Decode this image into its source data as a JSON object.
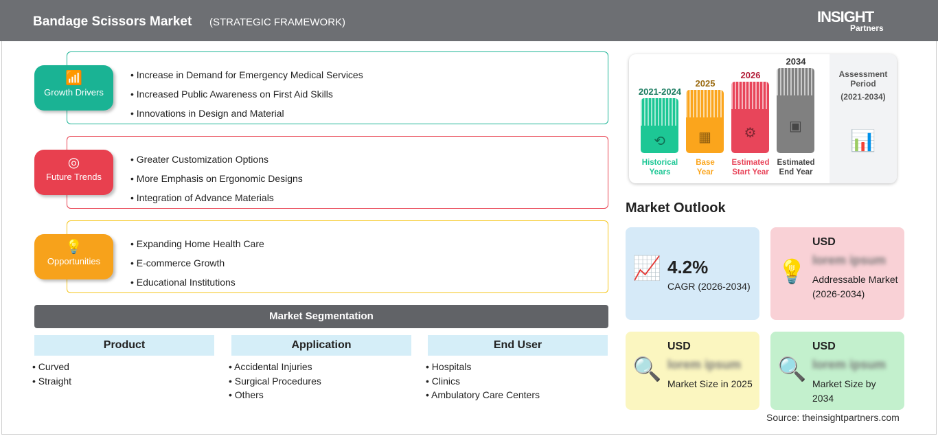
{
  "header": {
    "title": "Bandage Scissors Market",
    "subtitle": "(STRATEGIC FRAMEWORK)",
    "logo": "The INSIGHT Partners"
  },
  "sections": [
    {
      "label": "Growth Drivers",
      "color": "#1ab394",
      "icon": "bar-chart-icon",
      "items": [
        "Increase in Demand for Emergency Medical Services",
        "Increased Public Awareness on First Aid Skills",
        "Innovations in Design and Material"
      ]
    },
    {
      "label": "Future Trends",
      "color": "#e8404f",
      "icon": "target-icon",
      "items": [
        "Greater Customization Options",
        "More Emphasis on Ergonomic Designs",
        "Integration of Advance Materials"
      ]
    },
    {
      "label": "Opportunities",
      "color": "#f7a21b",
      "icon": "lightbulb-hand-icon",
      "items": [
        "Expanding Home Health Care",
        "E-commerce Growth",
        "Educational Institutions"
      ]
    }
  ],
  "segmentation": {
    "title": "Market Segmentation",
    "columns": [
      {
        "title": "Product",
        "items": [
          "Curved",
          "Straight"
        ]
      },
      {
        "title": "Application",
        "items": [
          "Accidental Injuries",
          "Surgical Procedures",
          "Others"
        ]
      },
      {
        "title": "End User",
        "items": [
          "Hospitals",
          "Clinics",
          "Ambulatory Care Centers"
        ]
      }
    ]
  },
  "timeline": {
    "bars": [
      {
        "year": "2021-2024",
        "label1": "Historical",
        "label2": "Years",
        "color": "#1dc795"
      },
      {
        "year": "2025",
        "label1": "Base",
        "label2": "Year",
        "color": "#fba51c"
      },
      {
        "year": "2026",
        "label1": "Estimated",
        "label2": "Start Year",
        "color": "#e8455a"
      },
      {
        "year": "2034",
        "label1": "Estimated",
        "label2": "End Year",
        "color": "#808080"
      }
    ],
    "assessment1": "Assessment",
    "assessment2": "Period",
    "assessment3": "(2021-2034)"
  },
  "outlook": {
    "title": "Market Outlook",
    "cagr_value": "4.2%",
    "cagr_label": "CAGR (2026-2034)",
    "cards": [
      {
        "currency": "USD",
        "value": "lorem ipsum",
        "desc": "Addressable Market (2026-2034)"
      },
      {
        "currency": "USD",
        "value": "lorem ipsum",
        "desc": "Market Size in 2025"
      },
      {
        "currency": "USD",
        "value": "lorem ipsum",
        "desc": "Market Size by 2034"
      }
    ]
  },
  "source": "Source: theinsightpartners.com"
}
